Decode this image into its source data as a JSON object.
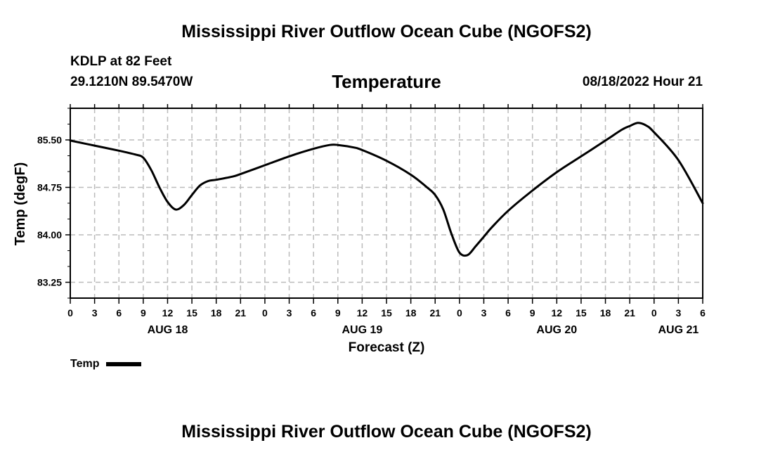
{
  "page": {
    "title": "Mississippi River Outflow Ocean Cube (NGOFS2)",
    "station_line": "KDLP at 82 Feet",
    "coords_line": "29.1210N  89.5470W",
    "subtitle": "Temperature",
    "datetime": "08/18/2022 Hour 21",
    "footer_title": "Mississippi River Outflow Ocean Cube (NGOFS2)"
  },
  "colors": {
    "line": "#000000",
    "grid": "#bbbbbb",
    "background": "#ffffff"
  },
  "chart_data": {
    "type": "line",
    "title": "Temperature",
    "xlabel": "Forecast (Z)",
    "ylabel": "Temp (degF)",
    "xlim": [
      0,
      78
    ],
    "ylim": [
      83.0,
      86.0
    ],
    "grid": true,
    "x_tick_labels": [
      "0",
      "3",
      "6",
      "9",
      "12",
      "15",
      "18",
      "21",
      "0",
      "3",
      "6",
      "9",
      "12",
      "15",
      "18",
      "21",
      "0",
      "3",
      "6",
      "9",
      "12",
      "15",
      "18",
      "21",
      "0",
      "3",
      "6"
    ],
    "y_ticks": [
      83.25,
      84.0,
      84.75,
      85.5
    ],
    "y_tick_labels": [
      "83.25",
      "84.00",
      "84.75",
      "85.50"
    ],
    "day_labels": [
      {
        "label": "AUG 18",
        "hour": 12
      },
      {
        "label": "AUG 19",
        "hour": 36
      },
      {
        "label": "AUG 20",
        "hour": 60
      },
      {
        "label": "AUG 21",
        "hour": 75
      }
    ],
    "legend": [
      {
        "name": "Temp",
        "position": "bottom-left"
      }
    ],
    "series": [
      {
        "name": "Temp",
        "x": [
          0,
          3,
          6,
          8,
          9,
          10,
          11,
          12,
          13,
          14,
          15,
          16,
          17,
          18,
          20,
          21,
          24,
          27,
          30,
          32,
          33,
          35,
          36,
          39,
          42,
          44,
          45,
          46,
          47,
          48,
          49,
          50,
          51,
          52,
          54,
          57,
          60,
          63,
          66,
          68,
          69,
          70,
          71,
          72,
          75,
          78
        ],
        "y": [
          85.49,
          85.41,
          85.33,
          85.27,
          85.22,
          85.02,
          84.75,
          84.52,
          84.4,
          84.47,
          84.63,
          84.78,
          84.85,
          84.87,
          84.92,
          84.96,
          85.1,
          85.24,
          85.36,
          85.42,
          85.42,
          85.38,
          85.34,
          85.17,
          84.95,
          84.75,
          84.63,
          84.4,
          84.02,
          83.72,
          83.68,
          83.82,
          83.97,
          84.12,
          84.38,
          84.7,
          84.99,
          85.24,
          85.49,
          85.66,
          85.72,
          85.77,
          85.73,
          85.62,
          85.18,
          84.5
        ]
      }
    ]
  }
}
